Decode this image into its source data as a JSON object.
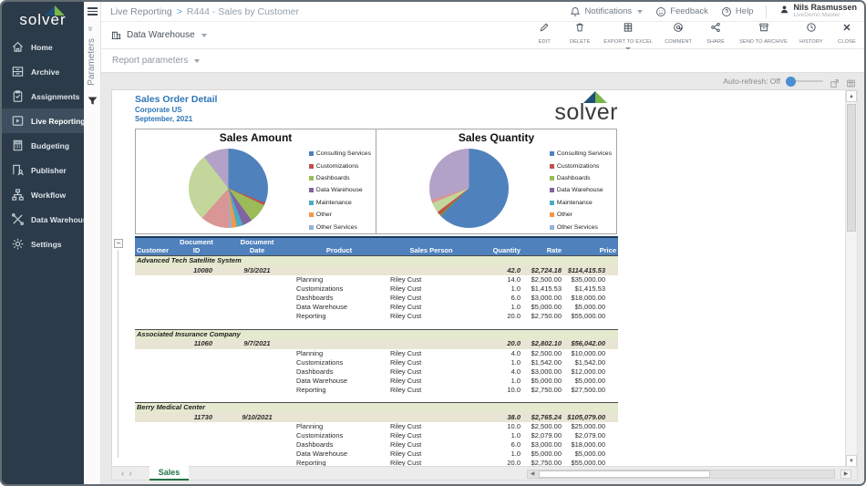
{
  "topbar": {
    "breadcrumb": {
      "section": "Live Reporting",
      "separator": ">",
      "title": "R444 - Sales by Customer"
    },
    "notifications_label": "Notifications",
    "feedback_label": "Feedback",
    "help_label": "Help",
    "user": {
      "name": "Nils Rasmussen",
      "org": "LiveDemo Master"
    }
  },
  "sidebar": {
    "logo_text": "solver",
    "items": [
      {
        "label": "Home",
        "icon": "home-icon",
        "active": false
      },
      {
        "label": "Archive",
        "icon": "archive-icon",
        "active": false
      },
      {
        "label": "Assignments",
        "icon": "assignments-icon",
        "active": false
      },
      {
        "label": "Live Reporting",
        "icon": "live-reporting-icon",
        "active": true
      },
      {
        "label": "Budgeting",
        "icon": "budgeting-icon",
        "active": false
      },
      {
        "label": "Publisher",
        "icon": "publisher-icon",
        "active": false
      },
      {
        "label": "Workflow",
        "icon": "workflow-icon",
        "active": false
      },
      {
        "label": "Data Warehouse",
        "icon": "data-warehouse-icon",
        "active": false
      },
      {
        "label": "Settings",
        "icon": "settings-icon",
        "active": false
      }
    ]
  },
  "params_strip": {
    "label": "Parameters"
  },
  "actionbar": {
    "source_label": "Data Warehouse",
    "actions": [
      {
        "label": "EDIT",
        "icon": "edit-icon",
        "has_caret": false
      },
      {
        "label": "DELETE",
        "icon": "delete-icon",
        "has_caret": false
      },
      {
        "label": "EXPORT TO EXCEL",
        "icon": "export-excel-icon",
        "has_caret": true
      },
      {
        "label": "COMMENT",
        "icon": "comment-icon",
        "has_caret": false
      },
      {
        "label": "SHARE",
        "icon": "share-icon",
        "has_caret": false
      },
      {
        "label": "SEND TO ARCHIVE",
        "icon": "send-archive-icon",
        "has_caret": false
      },
      {
        "label": "HISTORY",
        "icon": "history-icon",
        "has_caret": false
      },
      {
        "label": "CLOSE",
        "icon": "close-icon",
        "has_caret": false
      }
    ]
  },
  "param_row": {
    "label": "Report parameters"
  },
  "viewer": {
    "auto_refresh_label": "Auto-refresh: Off",
    "report_header": {
      "title": "Sales Order Detail",
      "subtitle": "Corporate US",
      "period": "September, 2021",
      "logo_text": "solver"
    },
    "sheet_tab": "Sales"
  },
  "chart_data": [
    {
      "type": "pie",
      "title": "Sales Amount",
      "legend_position": "right",
      "legend": [
        "Consulting Services",
        "Customizations",
        "Dashboards",
        "Data Warehouse",
        "Maintenance",
        "Other",
        "Other Services"
      ],
      "legend_colors": [
        "#4F81BD",
        "#C0504D",
        "#9BBB59",
        "#8064A2",
        "#4BACC6",
        "#F79646",
        "#95B3D7"
      ],
      "slices": [
        {
          "label": "Consulting Services",
          "pct": 31,
          "color": "#4F81BD"
        },
        {
          "label": "Customizations",
          "pct": 1,
          "color": "#C0504D"
        },
        {
          "label": "Dashboards",
          "pct": 8,
          "color": "#9BBB59"
        },
        {
          "label": "Data Warehouse",
          "pct": 4,
          "color": "#8064A2"
        },
        {
          "label": "Maintenance",
          "pct": 2.5,
          "color": "#4BACC6"
        },
        {
          "label": "Other",
          "pct": 2,
          "color": "#F79646"
        },
        {
          "label": "Other Services",
          "pct": 1,
          "color": "#95B3D7"
        },
        {
          "label": "series-8",
          "pct": 12,
          "color": "#D99694"
        },
        {
          "label": "series-9",
          "pct": 28,
          "color": "#C3D69B"
        },
        {
          "label": "series-10",
          "pct": 10.5,
          "color": "#B3A2C7"
        }
      ]
    },
    {
      "type": "pie",
      "title": "Sales Quantity",
      "legend_position": "right",
      "legend": [
        "Consulting Services",
        "Customizations",
        "Dashboards",
        "Data Warehouse",
        "Maintenance",
        "Other",
        "Other Services"
      ],
      "legend_colors": [
        "#4F81BD",
        "#C0504D",
        "#9BBB59",
        "#8064A2",
        "#4BACC6",
        "#F79646",
        "#95B3D7"
      ],
      "slices": [
        {
          "label": "Consulting Services",
          "pct": 62.5,
          "color": "#4F81BD"
        },
        {
          "label": "series-2",
          "pct": 0.8,
          "color": "#77933C"
        },
        {
          "label": "Customizations",
          "pct": 1.4,
          "color": "#C0504D"
        },
        {
          "label": "series-4",
          "pct": 4.2,
          "color": "#C3D69B"
        },
        {
          "label": "series-5",
          "pct": 1.4,
          "color": "#D99694"
        },
        {
          "label": "series-6",
          "pct": 29.7,
          "color": "#B3A2C7"
        }
      ]
    }
  ],
  "table": {
    "columns": [
      {
        "line1": "",
        "line2": "Customer",
        "align": "left"
      },
      {
        "line1": "Document",
        "line2": "ID",
        "align": "center"
      },
      {
        "line1": "Document",
        "line2": "Date",
        "align": "center"
      },
      {
        "line1": "",
        "line2": "Product",
        "align": "center"
      },
      {
        "line1": "",
        "line2": "Sales Person",
        "align": "center"
      },
      {
        "line1": "",
        "line2": "Quantity",
        "align": "right"
      },
      {
        "line1": "",
        "line2": "Rate",
        "align": "right"
      },
      {
        "line1": "",
        "line2": "Price",
        "align": "right"
      }
    ],
    "groups": [
      {
        "customer": "Advanced Tech Satellite System",
        "doc_id": "10080",
        "doc_date": "9/3/2021",
        "total_qty": "42.0",
        "total_rate": "$2,724.18",
        "total_price": "$114,415.53",
        "rows": [
          {
            "product": "Planning",
            "sales_person": "Riley Cust",
            "qty": "14.0",
            "rate": "$2,500.00",
            "price": "$35,000.00"
          },
          {
            "product": "Customizations",
            "sales_person": "Riley Cust",
            "qty": "1.0",
            "rate": "$1,415.53",
            "price": "$1,415.53"
          },
          {
            "product": "Dashboards",
            "sales_person": "Riley Cust",
            "qty": "6.0",
            "rate": "$3,000.00",
            "price": "$18,000.00"
          },
          {
            "product": "Data Warehouse",
            "sales_person": "Riley Cust",
            "qty": "1.0",
            "rate": "$5,000.00",
            "price": "$5,000.00"
          },
          {
            "product": "Reporting",
            "sales_person": "Riley Cust",
            "qty": "20.0",
            "rate": "$2,750.00",
            "price": "$55,000.00"
          }
        ]
      },
      {
        "customer": "Associated Insurance Company",
        "doc_id": "11060",
        "doc_date": "9/7/2021",
        "total_qty": "20.0",
        "total_rate": "$2,802.10",
        "total_price": "$56,042.00",
        "rows": [
          {
            "product": "Planning",
            "sales_person": "Riley Cust",
            "qty": "4.0",
            "rate": "$2,500.00",
            "price": "$10,000.00"
          },
          {
            "product": "Customizations",
            "sales_person": "Riley Cust",
            "qty": "1.0",
            "rate": "$1,542.00",
            "price": "$1,542.00"
          },
          {
            "product": "Dashboards",
            "sales_person": "Riley Cust",
            "qty": "4.0",
            "rate": "$3,000.00",
            "price": "$12,000.00"
          },
          {
            "product": "Data Warehouse",
            "sales_person": "Riley Cust",
            "qty": "1.0",
            "rate": "$5,000.00",
            "price": "$5,000.00"
          },
          {
            "product": "Reporting",
            "sales_person": "Riley Cust",
            "qty": "10.0",
            "rate": "$2,750.00",
            "price": "$27,500.00"
          }
        ]
      },
      {
        "customer": "Berry Medical Center",
        "doc_id": "11730",
        "doc_date": "9/10/2021",
        "total_qty": "38.0",
        "total_rate": "$2,765.24",
        "total_price": "$105,079.00",
        "rows": [
          {
            "product": "Planning",
            "sales_person": "Riley Cust",
            "qty": "10.0",
            "rate": "$2,500.00",
            "price": "$25,000.00"
          },
          {
            "product": "Customizations",
            "sales_person": "Riley Cust",
            "qty": "1.0",
            "rate": "$2,079.00",
            "price": "$2,079.00"
          },
          {
            "product": "Dashboards",
            "sales_person": "Riley Cust",
            "qty": "6.0",
            "rate": "$3,000.00",
            "price": "$18,000.00"
          },
          {
            "product": "Data Warehouse",
            "sales_person": "Riley Cust",
            "qty": "1.0",
            "rate": "$5,000.00",
            "price": "$5,000.00"
          },
          {
            "product": "Reporting",
            "sales_person": "Riley Cust",
            "qty": "20.0",
            "rate": "$2,750.00",
            "price": "$55,000.00"
          }
        ]
      }
    ]
  },
  "colors": {
    "sidebar_bg": "#2C3B49",
    "sidebar_active": "#3E4E5E",
    "table_header_blue": "#4F81BD",
    "group_band_green": "#E4EACE",
    "subtotal_tan": "#E9E5D4",
    "report_title_blue": "#2E75B6",
    "sheet_tab_green": "#217346",
    "slider_blue": "#4A8FD0",
    "logo_triangle_navy": "#1F4E79",
    "logo_triangle_green": "#7AB648"
  }
}
